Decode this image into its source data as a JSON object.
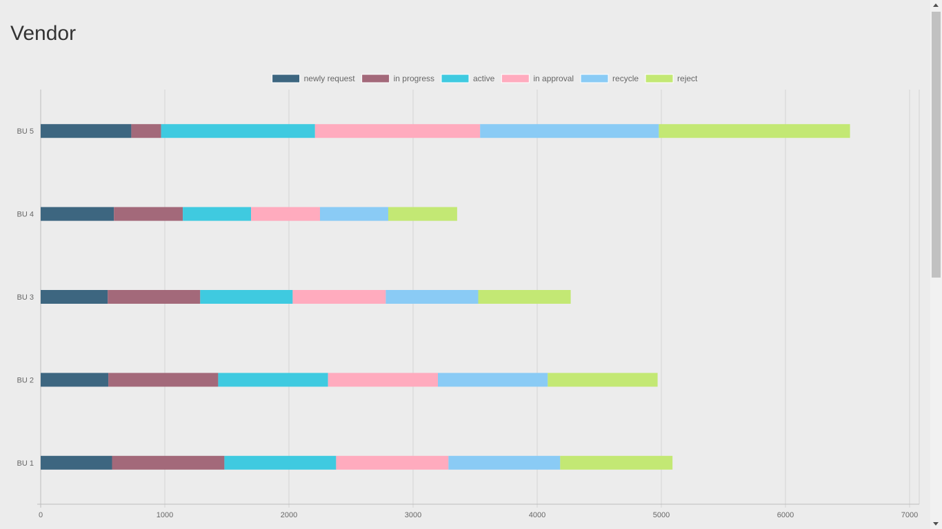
{
  "page": {
    "title": "Vendor"
  },
  "chart_data": {
    "type": "bar",
    "orientation": "horizontal",
    "stacked": true,
    "categories": [
      "BU 5",
      "BU 4",
      "BU 3",
      "BU 2",
      "BU 1"
    ],
    "series": [
      {
        "name": "newly request",
        "color": "#3d6680",
        "values": [
          730,
          590,
          540,
          545,
          575
        ]
      },
      {
        "name": "in progress",
        "color": "#a3697a",
        "values": [
          240,
          555,
          745,
          885,
          905
        ]
      },
      {
        "name": "active",
        "color": "#3fcae0",
        "values": [
          1240,
          550,
          745,
          885,
          900
        ]
      },
      {
        "name": "in approval",
        "color": "#ffabbe",
        "values": [
          1330,
          555,
          750,
          885,
          905
        ]
      },
      {
        "name": "recycle",
        "color": "#8acbf5",
        "values": [
          1440,
          550,
          745,
          885,
          900
        ]
      },
      {
        "name": "reject",
        "color": "#c3e874",
        "values": [
          1540,
          555,
          745,
          885,
          905
        ]
      }
    ],
    "xticks": [
      "0",
      "1000",
      "2000",
      "3000",
      "4000",
      "5000",
      "6000",
      "7000"
    ],
    "xlim": [
      0,
      7000
    ],
    "grid": true,
    "legend": "top-center"
  }
}
